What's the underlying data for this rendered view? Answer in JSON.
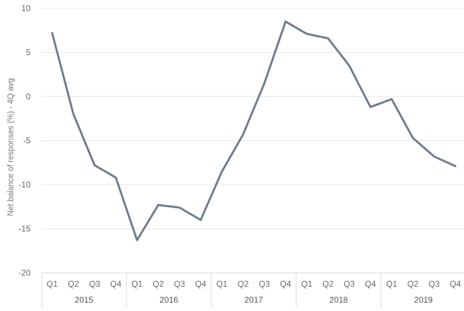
{
  "chart_data": {
    "type": "line",
    "title": "",
    "ylabel": "Net balance of responses (%) - 4Q avg",
    "xlabel": "",
    "ylim": [
      -20,
      10
    ],
    "yticks": [
      10,
      5,
      0,
      -5,
      -10,
      -15,
      -20
    ],
    "ytick_labels": [
      "10",
      "5",
      "0",
      "-5",
      "-10",
      "-15",
      "-20"
    ],
    "quarters": [
      "Q1",
      "Q2",
      "Q3",
      "Q4",
      "Q1",
      "Q2",
      "Q3",
      "Q4",
      "Q1",
      "Q2",
      "Q3",
      "Q4",
      "Q1",
      "Q2",
      "Q3",
      "Q4",
      "Q1",
      "Q2",
      "Q3",
      "Q4"
    ],
    "years": [
      "2015",
      "2016",
      "2017",
      "2018",
      "2019"
    ],
    "grid": true,
    "legend": "none",
    "series": [
      {
        "color": "#6f7d8c",
        "values": [
          7.2,
          -2.0,
          -7.8,
          -9.2,
          -16.3,
          -12.3,
          -12.6,
          -14.0,
          -8.5,
          -4.3,
          1.5,
          8.5,
          7.1,
          6.6,
          3.5,
          -1.2,
          -0.3,
          -4.7,
          -6.8,
          -7.9
        ]
      }
    ]
  }
}
